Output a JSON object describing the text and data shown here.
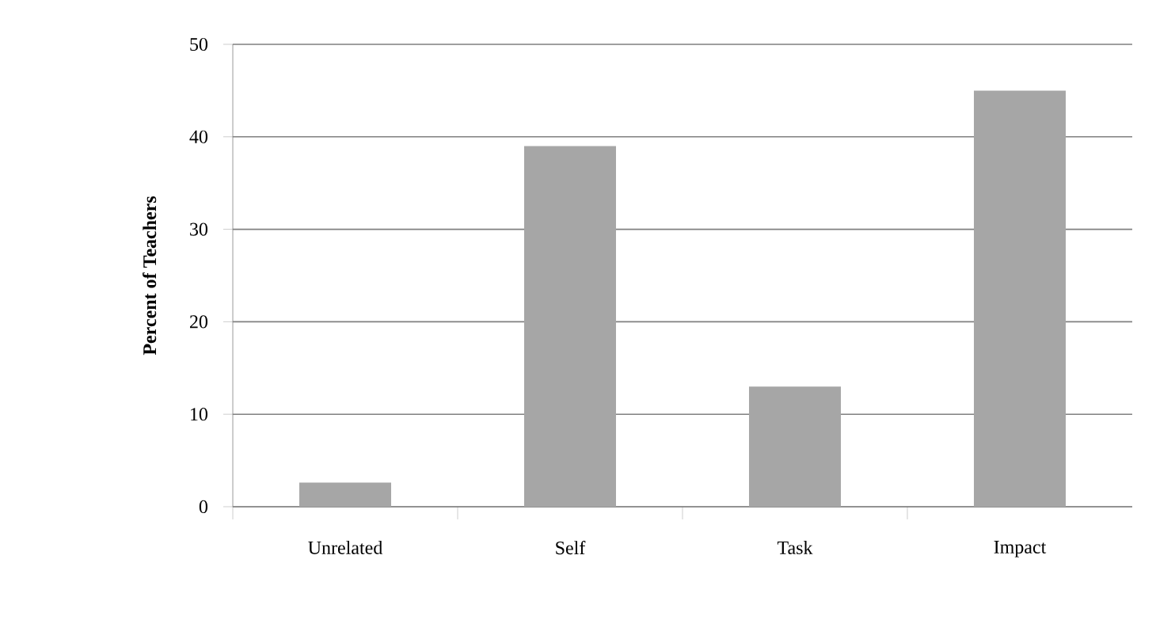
{
  "chart_data": {
    "type": "bar",
    "ylabel": "Percent of Teachers",
    "categories": [
      "Unrelated",
      "Self",
      "Task",
      "Impact"
    ],
    "values": [
      2.6,
      39,
      13,
      45
    ],
    "color": "#a6a6a6",
    "ylim": [
      0,
      50
    ],
    "yticks": [
      0,
      10,
      20,
      30,
      40,
      50
    ],
    "grid": "y"
  }
}
